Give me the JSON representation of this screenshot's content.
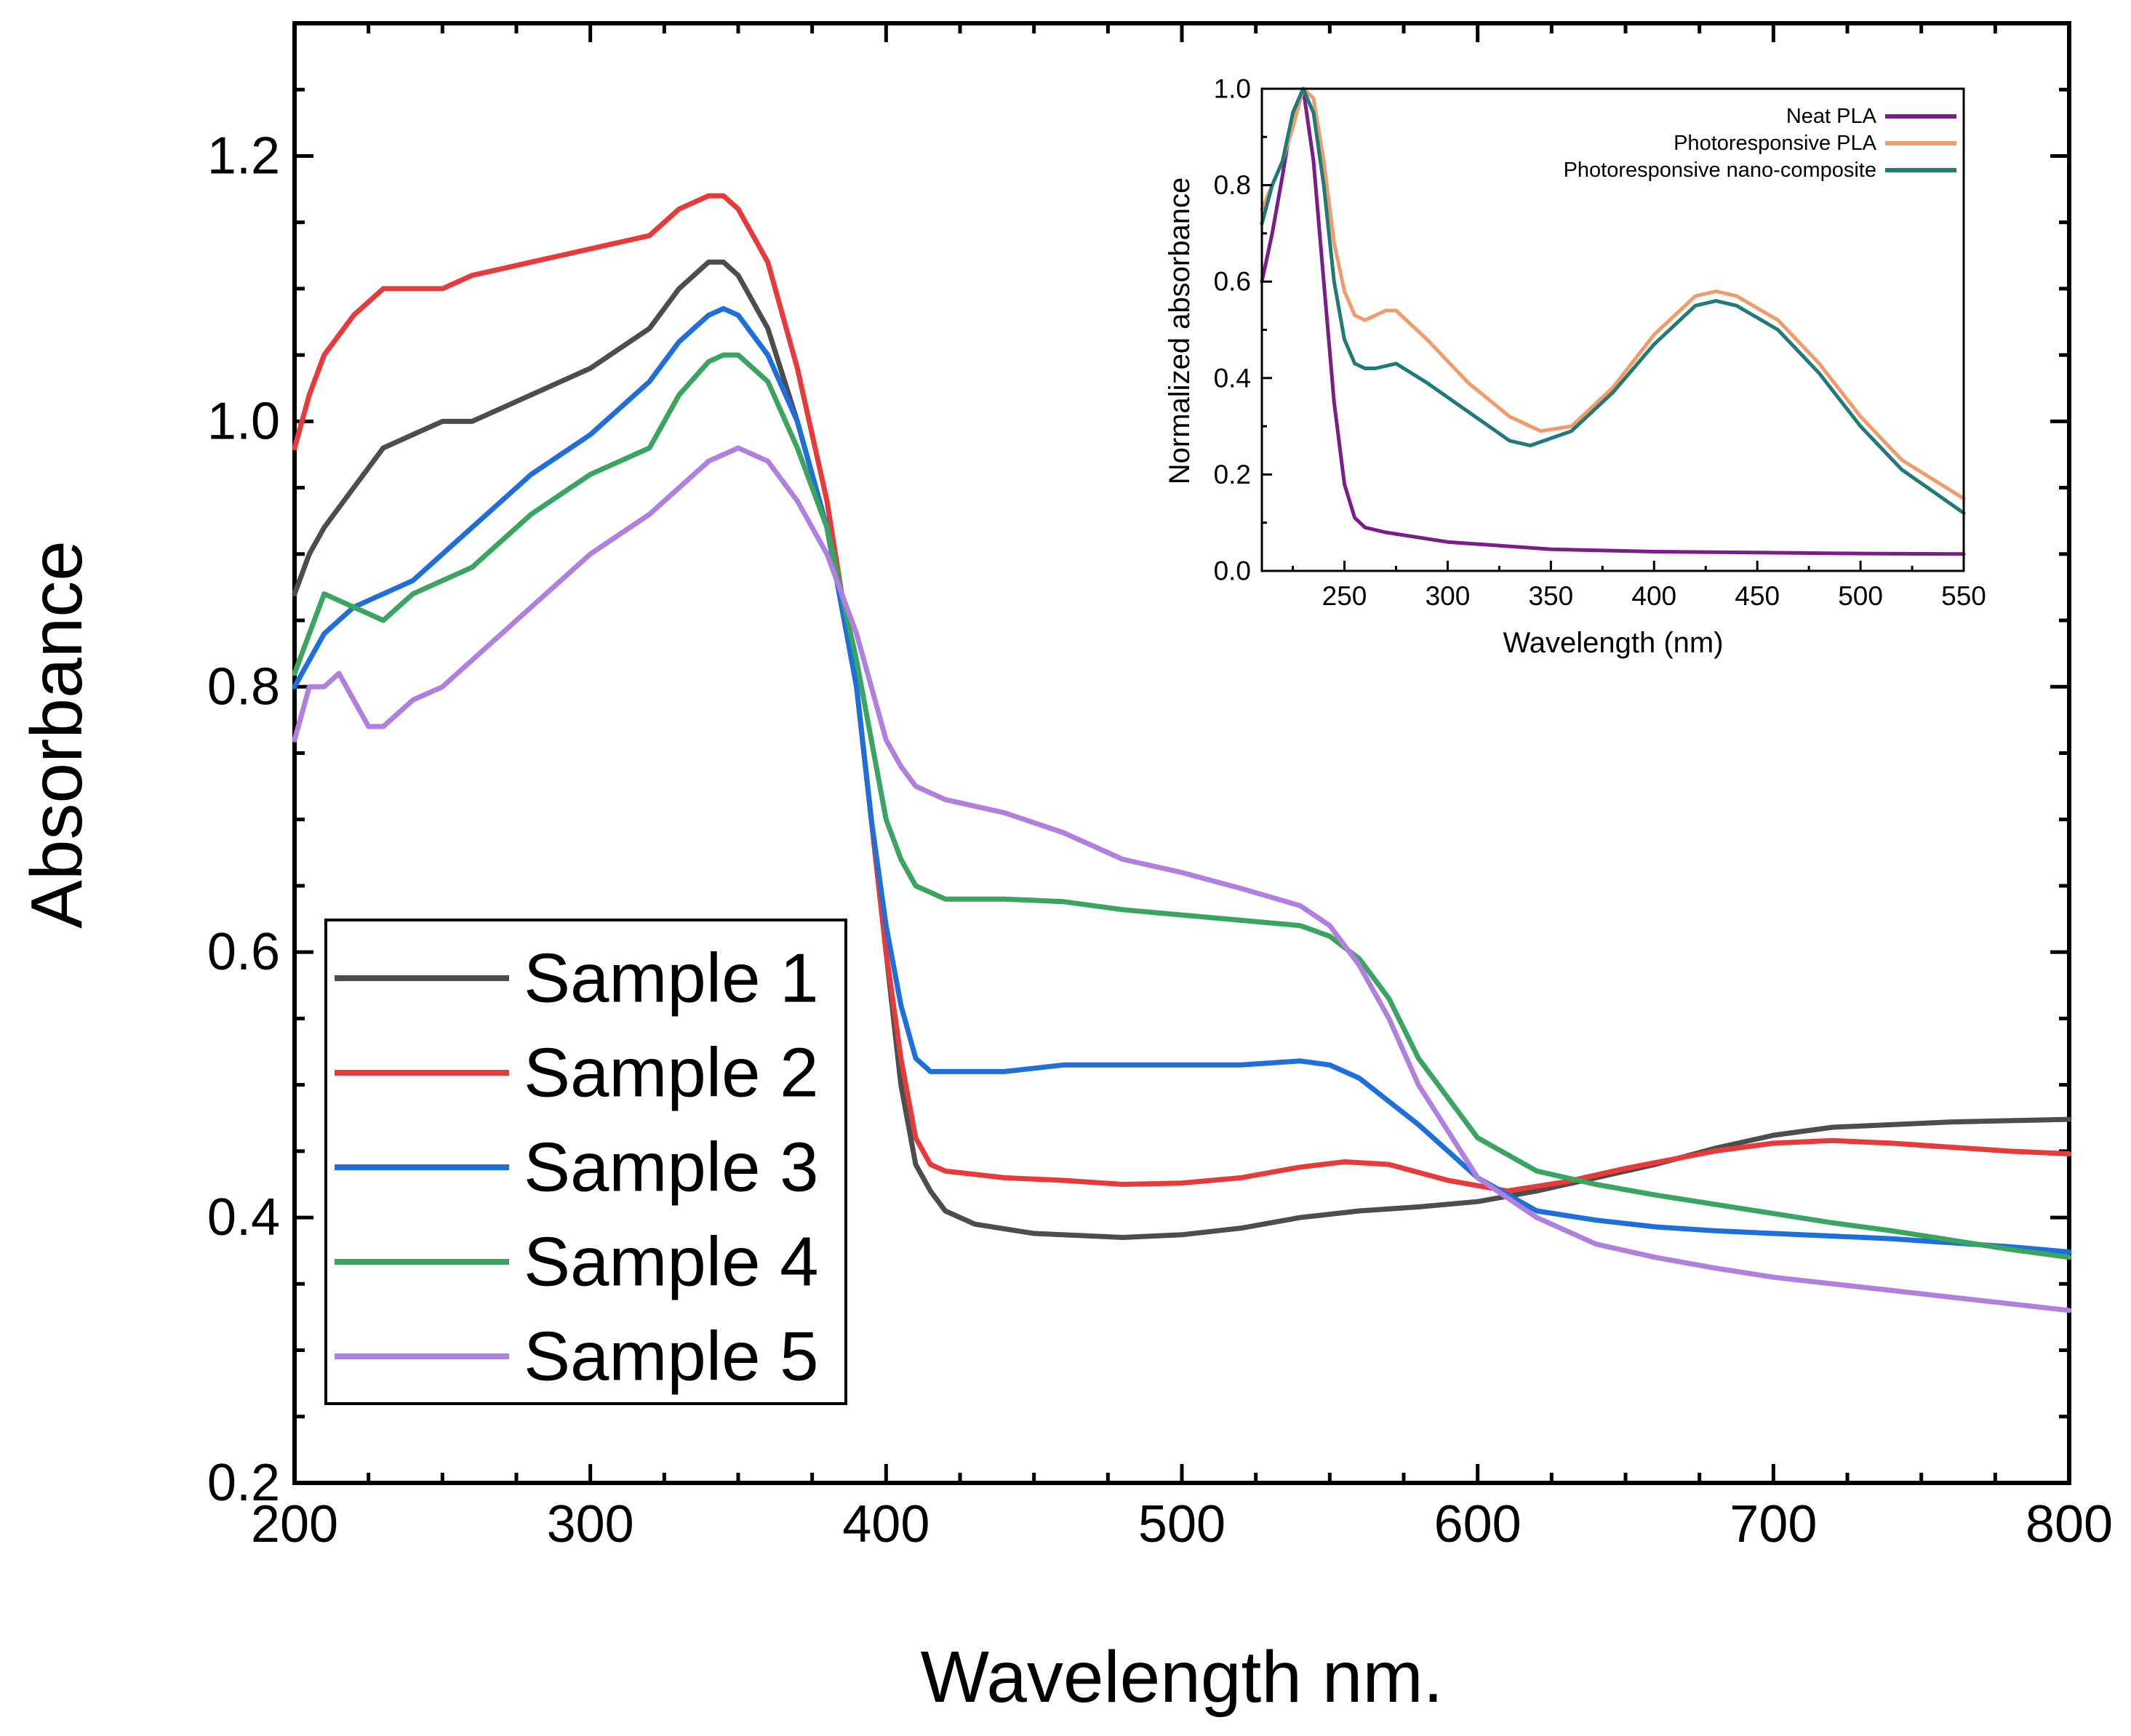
{
  "chart_data": [
    {
      "id": "main",
      "type": "line",
      "title": "",
      "xlabel": "Wavelength nm.",
      "ylabel": "Absorbance",
      "xlim": [
        200,
        800
      ],
      "ylim": [
        0.2,
        1.3
      ],
      "xticks": [
        "200",
        "300",
        "400",
        "500",
        "600",
        "700",
        "800"
      ],
      "yticks": [
        "0.2",
        "0.4",
        "0.6",
        "0.8",
        "1.0",
        "1.2"
      ],
      "grid": false,
      "legend_position": "bottom-left",
      "series": [
        {
          "name": "Sample 1",
          "color": "#4d4d4d",
          "x": [
            200,
            205,
            210,
            220,
            230,
            240,
            250,
            260,
            280,
            300,
            320,
            330,
            340,
            345,
            350,
            360,
            370,
            380,
            390,
            395,
            400,
            405,
            410,
            415,
            420,
            430,
            450,
            480,
            500,
            520,
            540,
            560,
            580,
            600,
            620,
            640,
            660,
            680,
            700,
            720,
            740,
            760,
            780,
            800
          ],
          "y": [
            0.87,
            0.9,
            0.92,
            0.95,
            0.98,
            0.99,
            1.0,
            1.0,
            1.02,
            1.04,
            1.07,
            1.1,
            1.12,
            1.12,
            1.11,
            1.07,
            1.0,
            0.92,
            0.8,
            0.7,
            0.6,
            0.5,
            0.44,
            0.42,
            0.405,
            0.395,
            0.388,
            0.385,
            0.387,
            0.392,
            0.4,
            0.405,
            0.408,
            0.412,
            0.42,
            0.43,
            0.44,
            0.452,
            0.462,
            0.468,
            0.47,
            0.472,
            0.473,
            0.474
          ]
        },
        {
          "name": "Sample 2",
          "color": "#e8393b",
          "x": [
            200,
            205,
            210,
            220,
            230,
            240,
            250,
            260,
            280,
            300,
            320,
            330,
            340,
            345,
            350,
            360,
            370,
            380,
            390,
            395,
            400,
            405,
            410,
            415,
            420,
            440,
            460,
            480,
            500,
            520,
            540,
            555,
            570,
            590,
            610,
            630,
            650,
            680,
            700,
            720,
            740,
            760,
            780,
            800
          ],
          "y": [
            0.98,
            1.02,
            1.05,
            1.08,
            1.1,
            1.1,
            1.1,
            1.11,
            1.12,
            1.13,
            1.14,
            1.16,
            1.17,
            1.17,
            1.16,
            1.12,
            1.04,
            0.94,
            0.8,
            0.7,
            0.6,
            0.52,
            0.46,
            0.44,
            0.435,
            0.43,
            0.428,
            0.425,
            0.426,
            0.43,
            0.438,
            0.442,
            0.44,
            0.428,
            0.42,
            0.427,
            0.437,
            0.45,
            0.456,
            0.458,
            0.456,
            0.453,
            0.45,
            0.448
          ]
        },
        {
          "name": "Sample 3",
          "color": "#1e6fdc",
          "x": [
            200,
            205,
            210,
            220,
            230,
            240,
            250,
            260,
            280,
            300,
            320,
            330,
            340,
            345,
            350,
            360,
            370,
            380,
            390,
            395,
            400,
            405,
            410,
            415,
            420,
            440,
            460,
            480,
            500,
            520,
            540,
            550,
            560,
            580,
            600,
            620,
            640,
            660,
            680,
            700,
            720,
            740,
            760,
            780,
            800
          ],
          "y": [
            0.8,
            0.82,
            0.84,
            0.86,
            0.87,
            0.88,
            0.9,
            0.92,
            0.96,
            0.99,
            1.03,
            1.06,
            1.08,
            1.085,
            1.08,
            1.05,
            1.0,
            0.92,
            0.8,
            0.7,
            0.62,
            0.56,
            0.52,
            0.51,
            0.51,
            0.51,
            0.515,
            0.515,
            0.515,
            0.515,
            0.518,
            0.515,
            0.505,
            0.47,
            0.43,
            0.405,
            0.398,
            0.393,
            0.39,
            0.388,
            0.386,
            0.384,
            0.381,
            0.378,
            0.374
          ]
        },
        {
          "name": "Sample 4",
          "color": "#3aa561",
          "x": [
            200,
            205,
            210,
            220,
            230,
            240,
            250,
            260,
            280,
            300,
            320,
            330,
            340,
            345,
            350,
            360,
            370,
            380,
            390,
            395,
            400,
            405,
            410,
            415,
            420,
            440,
            460,
            480,
            500,
            520,
            540,
            550,
            560,
            570,
            580,
            600,
            620,
            640,
            660,
            680,
            700,
            720,
            740,
            760,
            780,
            800
          ],
          "y": [
            0.81,
            0.84,
            0.87,
            0.86,
            0.85,
            0.87,
            0.88,
            0.89,
            0.93,
            0.96,
            0.98,
            1.02,
            1.045,
            1.05,
            1.05,
            1.03,
            0.98,
            0.92,
            0.82,
            0.76,
            0.7,
            0.67,
            0.65,
            0.645,
            0.64,
            0.64,
            0.638,
            0.632,
            0.628,
            0.624,
            0.62,
            0.612,
            0.595,
            0.565,
            0.52,
            0.46,
            0.435,
            0.425,
            0.417,
            0.41,
            0.403,
            0.396,
            0.39,
            0.383,
            0.376,
            0.37
          ]
        },
        {
          "name": "Sample 5",
          "color": "#b07fe0",
          "x": [
            200,
            205,
            210,
            215,
            220,
            225,
            230,
            240,
            250,
            260,
            280,
            300,
            320,
            330,
            340,
            345,
            350,
            360,
            370,
            380,
            390,
            395,
            400,
            405,
            410,
            420,
            440,
            460,
            480,
            500,
            520,
            540,
            550,
            560,
            570,
            580,
            600,
            620,
            640,
            660,
            680,
            700,
            720,
            740,
            760,
            780,
            800
          ],
          "y": [
            0.76,
            0.8,
            0.8,
            0.81,
            0.79,
            0.77,
            0.77,
            0.79,
            0.8,
            0.82,
            0.86,
            0.9,
            0.93,
            0.95,
            0.97,
            0.975,
            0.98,
            0.97,
            0.94,
            0.9,
            0.84,
            0.8,
            0.76,
            0.74,
            0.725,
            0.715,
            0.705,
            0.69,
            0.67,
            0.66,
            0.648,
            0.635,
            0.62,
            0.59,
            0.55,
            0.5,
            0.43,
            0.4,
            0.38,
            0.37,
            0.362,
            0.355,
            0.35,
            0.345,
            0.34,
            0.335,
            0.33
          ]
        }
      ]
    },
    {
      "id": "inset",
      "type": "line",
      "title": "",
      "xlabel": "Wavelength (nm)",
      "ylabel": "Normalized absorbance",
      "xlim": [
        210,
        550
      ],
      "ylim": [
        0.0,
        1.0
      ],
      "xticks": [
        "250",
        "300",
        "350",
        "400",
        "450",
        "500",
        "550"
      ],
      "yticks": [
        "0.0",
        "0.2",
        "0.4",
        "0.6",
        "0.8",
        "1.0"
      ],
      "grid": false,
      "legend_position": "top-right",
      "series": [
        {
          "name": "Neat PLA",
          "color": "#7d1a8c",
          "x": [
            210,
            215,
            220,
            225,
            230,
            235,
            240,
            245,
            250,
            255,
            260,
            270,
            300,
            350,
            400,
            450,
            500,
            550
          ],
          "y": [
            0.6,
            0.7,
            0.82,
            0.95,
            1.0,
            0.85,
            0.6,
            0.35,
            0.18,
            0.11,
            0.09,
            0.08,
            0.06,
            0.045,
            0.04,
            0.038,
            0.036,
            0.035
          ]
        },
        {
          "name": "Photoresponsive PLA",
          "color": "#f39a6b",
          "x": [
            210,
            215,
            220,
            225,
            230,
            235,
            240,
            245,
            250,
            255,
            260,
            270,
            275,
            290,
            310,
            330,
            345,
            360,
            380,
            400,
            420,
            430,
            440,
            460,
            480,
            500,
            520,
            550
          ],
          "y": [
            0.75,
            0.8,
            0.85,
            0.92,
            1.0,
            0.98,
            0.85,
            0.68,
            0.58,
            0.53,
            0.52,
            0.54,
            0.54,
            0.48,
            0.39,
            0.32,
            0.29,
            0.3,
            0.38,
            0.49,
            0.57,
            0.58,
            0.57,
            0.52,
            0.43,
            0.32,
            0.23,
            0.15
          ]
        },
        {
          "name": "Photoresponsive nano-composite",
          "color": "#1f7a78",
          "x": [
            210,
            215,
            220,
            225,
            230,
            235,
            240,
            245,
            250,
            255,
            260,
            265,
            275,
            290,
            310,
            330,
            340,
            360,
            380,
            400,
            420,
            430,
            440,
            460,
            480,
            500,
            520,
            550
          ],
          "y": [
            0.72,
            0.8,
            0.85,
            0.95,
            1.0,
            0.95,
            0.8,
            0.6,
            0.48,
            0.43,
            0.42,
            0.42,
            0.43,
            0.39,
            0.33,
            0.27,
            0.26,
            0.29,
            0.37,
            0.47,
            0.55,
            0.56,
            0.55,
            0.5,
            0.41,
            0.3,
            0.21,
            0.12
          ]
        }
      ]
    }
  ]
}
